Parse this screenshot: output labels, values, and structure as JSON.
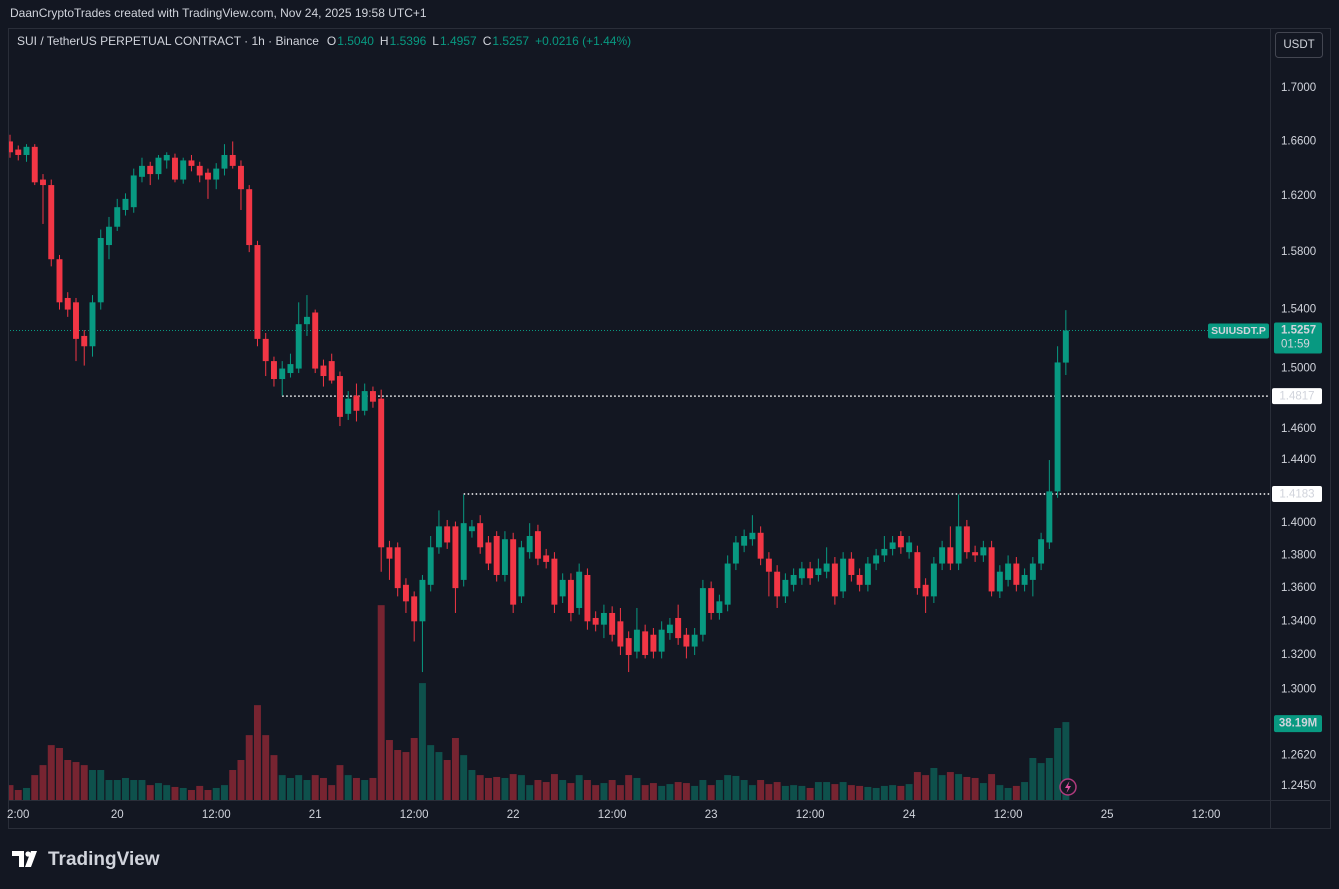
{
  "header": {
    "text": "DaanCryptoTrades created with TradingView.com, Nov 24, 2025 19:58 UTC+1"
  },
  "brand": "TradingView",
  "chart_data": {
    "type": "candlestick",
    "title": "SUI / TetherUS PERPETUAL CONTRACT · 1h · Binance",
    "ohlc_legend": [
      {
        "key": "O",
        "value": "1.5040"
      },
      {
        "key": "H",
        "value": "1.5396"
      },
      {
        "key": "L",
        "value": "1.4957"
      },
      {
        "key": "C",
        "value": "1.5257"
      }
    ],
    "change": "+0.0216 (+1.44%)",
    "currency": "USDT",
    "up_color": "#089981",
    "down_color": "#f23645",
    "x": [
      "2025-11-19 11:00",
      "2025-11-19 12:00",
      "2025-11-19 13:00",
      "2025-11-19 14:00",
      "2025-11-19 15:00",
      "2025-11-19 16:00",
      "2025-11-19 17:00",
      "2025-11-19 18:00",
      "2025-11-19 19:00",
      "2025-11-19 20:00",
      "2025-11-19 21:00",
      "2025-11-19 22:00",
      "2025-11-19 23:00",
      "2025-11-20 00:00",
      "2025-11-20 01:00",
      "2025-11-20 02:00",
      "2025-11-20 03:00",
      "2025-11-20 04:00",
      "2025-11-20 05:00",
      "2025-11-20 06:00",
      "2025-11-20 07:00",
      "2025-11-20 08:00",
      "2025-11-20 09:00",
      "2025-11-20 10:00",
      "2025-11-20 11:00",
      "2025-11-20 12:00",
      "2025-11-20 13:00",
      "2025-11-20 14:00",
      "2025-11-20 15:00",
      "2025-11-20 16:00",
      "2025-11-20 17:00",
      "2025-11-20 18:00",
      "2025-11-20 19:00",
      "2025-11-20 20:00",
      "2025-11-20 21:00",
      "2025-11-20 22:00",
      "2025-11-20 23:00",
      "2025-11-21 00:00",
      "2025-11-21 01:00",
      "2025-11-21 02:00",
      "2025-11-21 03:00",
      "2025-11-21 04:00",
      "2025-11-21 05:00",
      "2025-11-21 06:00",
      "2025-11-21 07:00",
      "2025-11-21 08:00",
      "2025-11-21 09:00",
      "2025-11-21 10:00",
      "2025-11-21 11:00",
      "2025-11-21 12:00",
      "2025-11-21 13:00",
      "2025-11-21 14:00",
      "2025-11-21 15:00",
      "2025-11-21 16:00",
      "2025-11-21 17:00",
      "2025-11-21 18:00",
      "2025-11-21 19:00",
      "2025-11-21 20:00",
      "2025-11-21 21:00",
      "2025-11-21 22:00",
      "2025-11-21 23:00",
      "2025-11-22 00:00",
      "2025-11-22 01:00",
      "2025-11-22 02:00",
      "2025-11-22 03:00",
      "2025-11-22 04:00",
      "2025-11-22 05:00",
      "2025-11-22 06:00",
      "2025-11-22 07:00",
      "2025-11-22 08:00",
      "2025-11-22 09:00",
      "2025-11-22 10:00",
      "2025-11-22 11:00",
      "2025-11-22 12:00",
      "2025-11-22 13:00",
      "2025-11-22 14:00",
      "2025-11-22 15:00",
      "2025-11-22 16:00",
      "2025-11-22 17:00",
      "2025-11-22 18:00",
      "2025-11-22 19:00",
      "2025-11-22 20:00",
      "2025-11-22 21:00",
      "2025-11-22 22:00",
      "2025-11-22 23:00",
      "2025-11-23 00:00",
      "2025-11-23 01:00",
      "2025-11-23 02:00",
      "2025-11-23 03:00",
      "2025-11-23 04:00",
      "2025-11-23 05:00",
      "2025-11-23 06:00",
      "2025-11-23 07:00",
      "2025-11-23 08:00",
      "2025-11-23 09:00",
      "2025-11-23 10:00",
      "2025-11-23 11:00",
      "2025-11-23 12:00",
      "2025-11-23 13:00",
      "2025-11-23 14:00",
      "2025-11-23 15:00",
      "2025-11-23 16:00",
      "2025-11-23 17:00",
      "2025-11-23 18:00",
      "2025-11-23 19:00",
      "2025-11-23 20:00",
      "2025-11-23 21:00",
      "2025-11-23 22:00",
      "2025-11-23 23:00",
      "2025-11-24 00:00",
      "2025-11-24 01:00",
      "2025-11-24 02:00",
      "2025-11-24 03:00",
      "2025-11-24 04:00",
      "2025-11-24 05:00",
      "2025-11-24 06:00",
      "2025-11-24 07:00",
      "2025-11-24 08:00",
      "2025-11-24 09:00",
      "2025-11-24 10:00",
      "2025-11-24 11:00",
      "2025-11-24 12:00",
      "2025-11-24 13:00",
      "2025-11-24 14:00",
      "2025-11-24 15:00",
      "2025-11-24 16:00",
      "2025-11-24 17:00",
      "2025-11-24 18:00",
      "2025-11-24 19:00"
    ],
    "open": [
      1.66,
      1.654,
      1.65,
      1.656,
      1.632,
      1.628,
      1.575,
      1.548,
      1.545,
      1.522,
      1.515,
      1.545,
      1.585,
      1.598,
      1.61,
      1.612,
      1.634,
      1.642,
      1.636,
      1.646,
      1.648,
      1.632,
      1.646,
      1.642,
      1.637,
      1.632,
      1.64,
      1.65,
      1.642,
      1.625,
      1.585,
      1.52,
      1.505,
      1.493,
      1.497,
      1.5,
      1.53,
      1.538,
      1.502,
      1.505,
      1.495,
      1.47,
      1.482,
      1.472,
      1.485,
      1.48,
      1.385,
      1.385,
      1.362,
      1.355,
      1.34,
      1.362,
      1.385,
      1.398,
      1.398,
      1.365,
      1.395,
      1.4,
      1.388,
      1.392,
      1.368,
      1.39,
      1.355,
      1.382,
      1.395,
      1.38,
      1.378,
      1.355,
      1.365,
      1.348,
      1.368,
      1.342,
      1.338,
      1.345,
      1.34,
      1.33,
      1.322,
      1.334,
      1.332,
      1.322,
      1.333,
      1.342,
      1.332,
      1.325,
      1.332,
      1.36,
      1.345,
      1.35,
      1.375,
      1.386,
      1.39,
      1.394,
      1.378,
      1.37,
      1.355,
      1.362,
      1.366,
      1.372,
      1.368,
      1.37,
      1.375,
      1.358,
      1.378,
      1.368,
      1.362,
      1.375,
      1.38,
      1.384,
      1.392,
      1.382,
      1.382,
      1.362,
      1.355,
      1.375,
      1.385,
      1.375,
      1.398,
      1.382,
      1.38,
      1.385,
      1.358,
      1.365,
      1.375,
      1.362,
      1.365,
      1.375,
      1.388,
      1.42,
      1.504
    ],
    "high": [
      1.665,
      1.657,
      1.658,
      1.658,
      1.636,
      1.632,
      1.578,
      1.552,
      1.548,
      1.526,
      1.55,
      1.596,
      1.605,
      1.618,
      1.622,
      1.64,
      1.648,
      1.645,
      1.65,
      1.652,
      1.651,
      1.648,
      1.65,
      1.645,
      1.64,
      1.644,
      1.658,
      1.66,
      1.646,
      1.628,
      1.588,
      1.524,
      1.508,
      1.505,
      1.51,
      1.545,
      1.55,
      1.54,
      1.506,
      1.51,
      1.498,
      1.485,
      1.49,
      1.49,
      1.488,
      1.486,
      1.389,
      1.388,
      1.366,
      1.358,
      1.368,
      1.392,
      1.408,
      1.402,
      1.401,
      1.418,
      1.402,
      1.405,
      1.392,
      1.395,
      1.395,
      1.394,
      1.389,
      1.4,
      1.399,
      1.384,
      1.382,
      1.369,
      1.369,
      1.375,
      1.372,
      1.346,
      1.35,
      1.349,
      1.348,
      1.334,
      1.348,
      1.338,
      1.336,
      1.34,
      1.342,
      1.35,
      1.336,
      1.336,
      1.365,
      1.364,
      1.356,
      1.38,
      1.392,
      1.396,
      1.405,
      1.398,
      1.382,
      1.374,
      1.369,
      1.372,
      1.376,
      1.376,
      1.378,
      1.385,
      1.379,
      1.382,
      1.382,
      1.372,
      1.379,
      1.384,
      1.392,
      1.392,
      1.395,
      1.392,
      1.386,
      1.366,
      1.379,
      1.389,
      1.398,
      1.418,
      1.402,
      1.386,
      1.389,
      1.389,
      1.374,
      1.38,
      1.379,
      1.372,
      1.379,
      1.394,
      1.44,
      1.515,
      1.5396
    ],
    "low": [
      1.648,
      1.646,
      1.645,
      1.628,
      1.6,
      1.57,
      1.54,
      1.535,
      1.505,
      1.502,
      1.508,
      1.54,
      1.575,
      1.595,
      1.606,
      1.608,
      1.63,
      1.628,
      1.632,
      1.64,
      1.63,
      1.629,
      1.638,
      1.63,
      1.618,
      1.625,
      1.635,
      1.64,
      1.61,
      1.58,
      1.515,
      1.495,
      1.488,
      1.482,
      1.494,
      1.497,
      1.522,
      1.497,
      1.488,
      1.49,
      1.462,
      1.466,
      1.465,
      1.469,
      1.474,
      1.37,
      1.365,
      1.355,
      1.345,
      1.328,
      1.31,
      1.358,
      1.381,
      1.384,
      1.345,
      1.361,
      1.391,
      1.381,
      1.371,
      1.364,
      1.364,
      1.345,
      1.351,
      1.378,
      1.374,
      1.372,
      1.345,
      1.351,
      1.34,
      1.344,
      1.335,
      1.334,
      1.33,
      1.328,
      1.32,
      1.31,
      1.318,
      1.318,
      1.318,
      1.318,
      1.329,
      1.326,
      1.318,
      1.32,
      1.328,
      1.341,
      1.341,
      1.346,
      1.371,
      1.382,
      1.386,
      1.374,
      1.355,
      1.348,
      1.351,
      1.358,
      1.362,
      1.362,
      1.364,
      1.366,
      1.35,
      1.354,
      1.364,
      1.358,
      1.358,
      1.371,
      1.376,
      1.38,
      1.381,
      1.378,
      1.356,
      1.345,
      1.351,
      1.371,
      1.371,
      1.371,
      1.378,
      1.376,
      1.376,
      1.355,
      1.354,
      1.361,
      1.358,
      1.358,
      1.355,
      1.371,
      1.384,
      1.416,
      1.4957
    ],
    "close": [
      1.652,
      1.65,
      1.656,
      1.63,
      1.628,
      1.575,
      1.545,
      1.54,
      1.52,
      1.515,
      1.545,
      1.59,
      1.598,
      1.612,
      1.618,
      1.635,
      1.642,
      1.636,
      1.648,
      1.65,
      1.632,
      1.646,
      1.642,
      1.635,
      1.632,
      1.64,
      1.65,
      1.642,
      1.625,
      1.585,
      1.52,
      1.505,
      1.493,
      1.5,
      1.503,
      1.53,
      1.535,
      1.5,
      1.495,
      1.492,
      1.468,
      1.48,
      1.472,
      1.485,
      1.478,
      1.385,
      1.378,
      1.36,
      1.352,
      1.34,
      1.365,
      1.385,
      1.398,
      1.388,
      1.36,
      1.4,
      1.398,
      1.385,
      1.375,
      1.368,
      1.39,
      1.35,
      1.385,
      1.392,
      1.378,
      1.376,
      1.35,
      1.365,
      1.345,
      1.37,
      1.34,
      1.338,
      1.345,
      1.332,
      1.325,
      1.32,
      1.335,
      1.32,
      1.322,
      1.335,
      1.338,
      1.33,
      1.325,
      1.332,
      1.36,
      1.345,
      1.352,
      1.375,
      1.388,
      1.392,
      1.394,
      1.378,
      1.37,
      1.355,
      1.365,
      1.368,
      1.372,
      1.366,
      1.372,
      1.375,
      1.355,
      1.378,
      1.368,
      1.362,
      1.375,
      1.38,
      1.384,
      1.388,
      1.385,
      1.388,
      1.36,
      1.355,
      1.375,
      1.385,
      1.375,
      1.398,
      1.382,
      1.38,
      1.385,
      1.358,
      1.37,
      1.375,
      1.362,
      1.368,
      1.375,
      1.39,
      1.42,
      1.5041,
      1.5257
    ],
    "volume": [
      7.3,
      4.9,
      5.9,
      12.2,
      17.1,
      26.9,
      25.5,
      19.6,
      18.6,
      17.1,
      14.7,
      14.7,
      9.8,
      9.8,
      10.8,
      9.8,
      9.8,
      7.3,
      8.3,
      7.3,
      6.4,
      5.9,
      4.9,
      6.9,
      4.9,
      5.9,
      7.3,
      14.7,
      19.6,
      31.8,
      46.5,
      31.8,
      22.0,
      12.2,
      10.8,
      12.2,
      9.8,
      12.2,
      10.8,
      7.3,
      17.1,
      12.2,
      10.8,
      9.8,
      10.8,
      95.5,
      29.4,
      24.5,
      23.5,
      30.4,
      57.3,
      26.9,
      23.5,
      19.6,
      30.4,
      22.0,
      14.7,
      12.2,
      10.8,
      11.3,
      10.8,
      12.7,
      12.2,
      7.3,
      9.8,
      8.8,
      12.7,
      9.8,
      8.3,
      12.2,
      9.8,
      7.3,
      8.3,
      9.8,
      7.3,
      12.2,
      10.8,
      7.3,
      8.3,
      6.9,
      7.8,
      8.8,
      8.3,
      6.9,
      9.8,
      7.3,
      9.8,
      12.2,
      11.8,
      9.8,
      7.3,
      9.8,
      7.8,
      8.8,
      6.9,
      7.3,
      6.9,
      5.9,
      8.8,
      8.8,
      7.8,
      8.8,
      7.3,
      6.9,
      6.4,
      5.9,
      6.9,
      7.3,
      6.9,
      7.8,
      13.7,
      12.2,
      15.7,
      12.2,
      13.7,
      12.7,
      11.3,
      10.8,
      8.3,
      12.7,
      7.3,
      5.9,
      6.9,
      8.8,
      20.6,
      18.1,
      20.6,
      35.3,
      38.19
    ],
    "volume_label": "38.19M",
    "xlim": [
      "2025-11-19 11:00",
      "2025-11-25 19:45"
    ],
    "xticks": [
      {
        "value": "2025-11-19 12:00",
        "label": "2:00"
      },
      {
        "value": "2025-11-20 00:00",
        "label": "20"
      },
      {
        "value": "2025-11-20 12:00",
        "label": "12:00"
      },
      {
        "value": "2025-11-21 00:00",
        "label": "21"
      },
      {
        "value": "2025-11-21 12:00",
        "label": "12:00"
      },
      {
        "value": "2025-11-22 00:00",
        "label": "22"
      },
      {
        "value": "2025-11-22 12:00",
        "label": "12:00"
      },
      {
        "value": "2025-11-23 00:00",
        "label": "23"
      },
      {
        "value": "2025-11-23 12:00",
        "label": "12:00"
      },
      {
        "value": "2025-11-24 00:00",
        "label": "24"
      },
      {
        "value": "2025-11-24 12:00",
        "label": "12:00"
      },
      {
        "value": "2025-11-25 00:00",
        "label": "25"
      },
      {
        "value": "2025-11-25 12:00",
        "label": "12:00"
      }
    ],
    "ylim": [
      1.2373,
      1.7462
    ],
    "log_y": true,
    "yticks": [
      {
        "value": 1.7,
        "label": "1.7000"
      },
      {
        "value": 1.66,
        "label": "1.6600"
      },
      {
        "value": 1.62,
        "label": "1.6200"
      },
      {
        "value": 1.58,
        "label": "1.5800"
      },
      {
        "value": 1.54,
        "label": "1.5400"
      },
      {
        "value": 1.5,
        "label": "1.5000"
      },
      {
        "value": 1.46,
        "label": "1.4600"
      },
      {
        "value": 1.44,
        "label": "1.4400"
      },
      {
        "value": 1.4,
        "label": "1.4000"
      },
      {
        "value": 1.38,
        "label": "1.3800"
      },
      {
        "value": 1.36,
        "label": "1.3600"
      },
      {
        "value": 1.34,
        "label": "1.3400"
      },
      {
        "value": 1.32,
        "label": "1.3200"
      },
      {
        "value": 1.3,
        "label": "1.3000"
      },
      {
        "value": 1.262,
        "label": "1.2620"
      },
      {
        "value": 1.245,
        "label": "1.2450"
      }
    ],
    "y2lim": [
      0,
      150
    ],
    "grid": false,
    "hlines": [
      {
        "value": 1.4817,
        "start": "2025-11-20 20:00"
      },
      {
        "value": 1.4183,
        "start": "2025-11-21 18:00"
      }
    ],
    "last_price": {
      "symbol": "SUIUSDT.P",
      "value": 1.5257,
      "countdown": "01:59"
    }
  }
}
